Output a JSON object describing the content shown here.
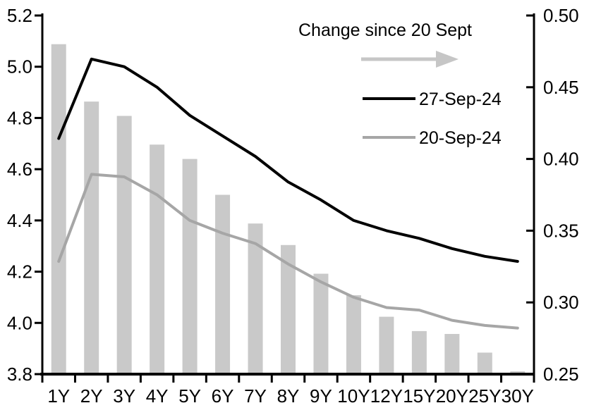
{
  "chart_data": {
    "type": "combo",
    "categories": [
      "1Y",
      "2Y",
      "3Y",
      "4Y",
      "5Y",
      "6Y",
      "7Y",
      "8Y",
      "9Y",
      "10Y",
      "12Y",
      "15Y",
      "20Y",
      "25Y",
      "30Y"
    ],
    "series": [
      {
        "name": "Change since 20 Sept",
        "type": "bar",
        "axis": "right",
        "color": "#c9c9c9",
        "values": [
          0.48,
          0.44,
          0.43,
          0.41,
          0.4,
          0.375,
          0.355,
          0.34,
          0.32,
          0.305,
          0.29,
          0.28,
          0.278,
          0.265,
          0.252
        ]
      },
      {
        "name": "27-Sep-24",
        "type": "line",
        "axis": "left",
        "color": "#000000",
        "values": [
          4.72,
          5.03,
          5.0,
          4.92,
          4.81,
          4.73,
          4.65,
          4.55,
          4.48,
          4.4,
          4.36,
          4.33,
          4.29,
          4.26,
          4.24
        ]
      },
      {
        "name": "20-Sep-24",
        "type": "line",
        "axis": "left",
        "color": "#a6a6a6",
        "values": [
          4.24,
          4.58,
          4.57,
          4.5,
          4.4,
          4.35,
          4.31,
          4.23,
          4.16,
          4.1,
          4.06,
          4.05,
          4.01,
          3.99,
          3.98
        ]
      }
    ],
    "left_axis": {
      "min": 3.8,
      "max": 5.2,
      "tick_labels": [
        "5.2",
        "5.0",
        "4.8",
        "4.6",
        "4.4",
        "4.2",
        "4.0",
        "3.8"
      ]
    },
    "right_axis": {
      "min": 0.25,
      "max": 0.5,
      "tick_labels": [
        "0.50",
        "0.45",
        "0.40",
        "0.35",
        "0.30",
        "0.25"
      ]
    },
    "legend": {
      "title": "Change since 20 Sept",
      "arrow": {
        "meaning": "points to right axis",
        "color": "#c6c6c6"
      },
      "entries": [
        {
          "label": "27-Sep-24",
          "color": "#000000"
        },
        {
          "label": "20-Sep-24",
          "color": "#a6a6a6"
        }
      ],
      "position": "top-right"
    },
    "grid": "off"
  },
  "colors": {
    "background": "#ffffff",
    "axis": "#000000",
    "bar": "#c9c9c9",
    "line_27_sep": "#000000",
    "line_20_sep": "#a6a6a6",
    "legend_arrow": "#c6c6c6"
  }
}
